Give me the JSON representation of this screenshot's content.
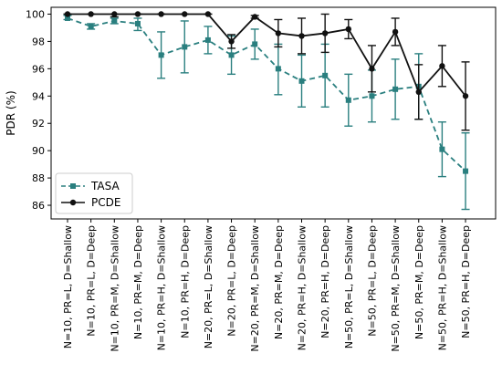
{
  "chart_data": {
    "type": "line",
    "ylabel": "PDR (%)",
    "ylim": [
      85,
      100.5
    ],
    "yticks": [
      86,
      88,
      90,
      92,
      94,
      96,
      98,
      100
    ],
    "grid": false,
    "legend_position": "bottom-left",
    "categories": [
      "N=10, PR=L, D=Shallow",
      "N=10, PR=L, D=Deep",
      "N=10, PR=M, D=Shallow",
      "N=10, PR=M, D=Deep",
      "N=10, PR=H, D=Shallow",
      "N=10, PR=H, D=Deep",
      "N=20, PR=L, D=Shallow",
      "N=20, PR=L, D=Deep",
      "N=20, PR=M, D=Shallow",
      "N=20, PR=M, D=Deep",
      "N=20, PR=H, D=Shallow",
      "N=20, PR=H, D=Deep",
      "N=50, PR=L, D=Shallow",
      "N=50, PR=L, D=Deep",
      "N=50, PR=M, D=Shallow",
      "N=50, PR=M, D=Deep",
      "N=50, PR=H, D=Shallow",
      "N=50, PR=H, D=Deep"
    ],
    "series": [
      {
        "name": "TASA",
        "color": "#2a7f7f",
        "line_style": "dashed",
        "marker": "square",
        "values": [
          99.7,
          99.1,
          99.5,
          99.3,
          97.0,
          97.6,
          98.1,
          97.0,
          97.8,
          96.0,
          95.1,
          95.5,
          93.7,
          94.0,
          94.5,
          94.7,
          90.1,
          88.5
        ],
        "err_low": [
          99.6,
          98.9,
          99.3,
          98.8,
          95.3,
          95.7,
          97.1,
          95.6,
          96.7,
          94.1,
          93.2,
          93.2,
          91.8,
          92.1,
          92.3,
          92.3,
          88.1,
          85.7
        ],
        "err_high": [
          99.9,
          99.3,
          99.7,
          99.7,
          98.7,
          99.5,
          99.1,
          98.4,
          98.9,
          97.8,
          97.0,
          97.8,
          95.6,
          95.9,
          96.7,
          97.1,
          92.1,
          91.3
        ]
      },
      {
        "name": "PCDE",
        "color": "#111111",
        "line_style": "solid",
        "marker": "circle",
        "values": [
          100.0,
          100.0,
          100.0,
          100.0,
          100.0,
          100.0,
          100.0,
          98.0,
          99.8,
          98.6,
          98.4,
          98.6,
          98.9,
          96.0,
          98.7,
          94.3,
          96.2,
          94.0
        ],
        "err_low": [
          100.0,
          100.0,
          99.8,
          100.0,
          100.0,
          100.0,
          100.0,
          97.5,
          99.7,
          97.6,
          97.1,
          97.2,
          98.2,
          94.3,
          97.7,
          92.3,
          94.7,
          91.5
        ],
        "err_high": [
          100.0,
          100.0,
          100.0,
          100.0,
          100.0,
          100.0,
          100.0,
          98.5,
          99.9,
          99.6,
          99.7,
          100.0,
          99.6,
          97.7,
          99.7,
          96.3,
          97.7,
          96.5
        ]
      }
    ]
  }
}
